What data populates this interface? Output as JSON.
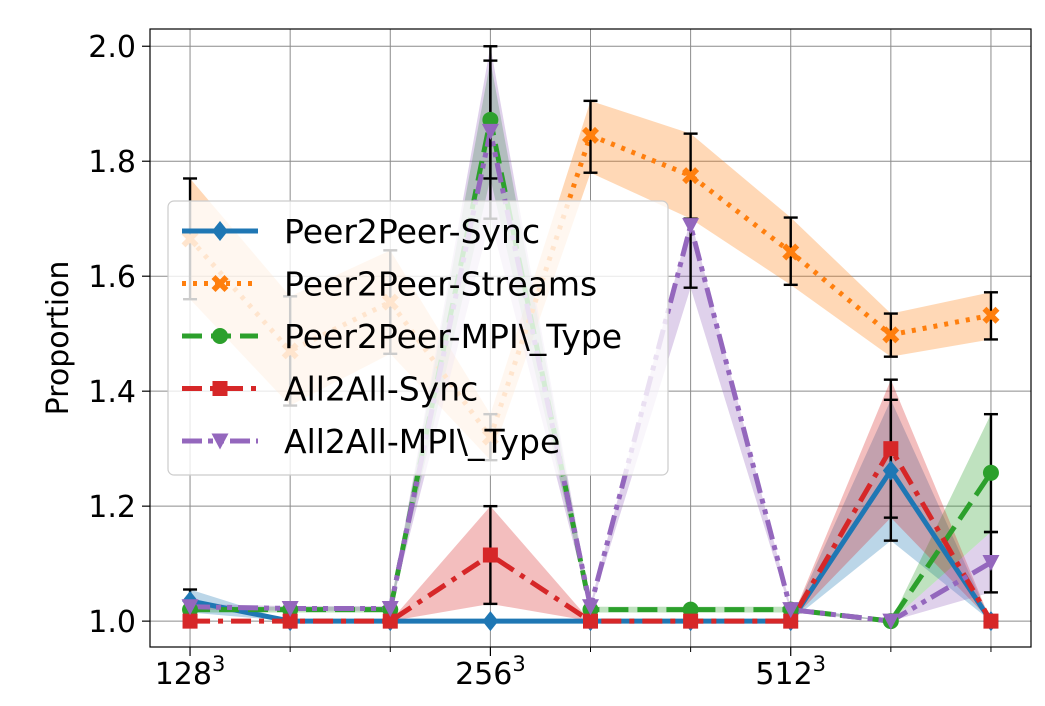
{
  "chart_data": {
    "type": "line",
    "ylabel": "Proportion",
    "xlabel": "",
    "ylim": [
      0.955,
      2.03
    ],
    "yticks": [
      1.0,
      1.2,
      1.4,
      1.6,
      1.8,
      2.0
    ],
    "ytick_labels": [
      "1.0",
      "1.2",
      "1.4",
      "1.6",
      "1.8",
      "2.0"
    ],
    "x": [
      0,
      1,
      2,
      3,
      4,
      5,
      6,
      7,
      8
    ],
    "xlim": [
      -0.4,
      8.4
    ],
    "xtick_positions": [
      0,
      3,
      6
    ],
    "xtick_labels": [
      {
        "base": "128",
        "exp": "3"
      },
      {
        "base": "256",
        "exp": "3"
      },
      {
        "base": "512",
        "exp": "3"
      }
    ],
    "minor_xticks": [
      1,
      2,
      4,
      5,
      7,
      8
    ],
    "grid": true,
    "legend_position": "upper-left",
    "series": [
      {
        "name": "Peer2Peer-Sync",
        "color": "#1f77b4",
        "linestyle": "solid",
        "marker": "diamond",
        "values": [
          1.035,
          1.0,
          1.0,
          1.0,
          1.0,
          1.0,
          1.0,
          1.262,
          1.0
        ],
        "lower": [
          1.015,
          1.0,
          1.0,
          1.0,
          1.0,
          1.0,
          1.0,
          1.14,
          1.0
        ],
        "upper": [
          1.055,
          1.0,
          1.0,
          1.0,
          1.0,
          1.0,
          1.0,
          1.385,
          1.0
        ]
      },
      {
        "name": "Peer2Peer-Streams",
        "color": "#ff7f0e",
        "linestyle": "dotted",
        "marker": "x",
        "values": [
          1.665,
          1.47,
          1.555,
          1.32,
          1.845,
          1.775,
          1.642,
          1.498,
          1.532
        ],
        "lower": [
          1.56,
          1.375,
          1.465,
          1.28,
          1.78,
          1.7,
          1.585,
          1.46,
          1.49
        ],
        "upper": [
          1.77,
          1.565,
          1.645,
          1.36,
          1.905,
          1.848,
          1.702,
          1.535,
          1.572
        ]
      },
      {
        "name": "Peer2Peer-MPI\\_Type",
        "color": "#2ca02c",
        "linestyle": "dashed",
        "marker": "circle",
        "values": [
          1.02,
          1.02,
          1.02,
          1.872,
          1.02,
          1.02,
          1.02,
          1.0,
          1.258
        ],
        "lower": [
          1.015,
          1.015,
          1.015,
          1.77,
          1.015,
          1.015,
          1.015,
          1.0,
          1.155
        ],
        "upper": [
          1.025,
          1.025,
          1.025,
          1.975,
          1.025,
          1.025,
          1.025,
          1.0,
          1.36
        ]
      },
      {
        "name": "All2All-Sync",
        "color": "#d62728",
        "linestyle": "dashdot",
        "marker": "square",
        "values": [
          1.0,
          1.0,
          1.0,
          1.115,
          1.0,
          1.0,
          1.0,
          1.3,
          1.0
        ],
        "lower": [
          1.0,
          1.0,
          1.0,
          1.03,
          1.0,
          1.0,
          1.0,
          1.18,
          1.0
        ],
        "upper": [
          1.0,
          1.0,
          1.0,
          1.2,
          1.0,
          1.0,
          1.0,
          1.42,
          1.0
        ]
      },
      {
        "name": "All2All-MPI\\_Type",
        "color": "#9467bd",
        "linestyle": "dashdotdot",
        "marker": "triangle-down",
        "values": [
          1.025,
          1.022,
          1.022,
          1.852,
          1.025,
          1.688,
          1.02,
          1.0,
          1.102
        ],
        "lower": [
          1.02,
          1.018,
          1.018,
          1.7,
          1.02,
          1.58,
          1.015,
          1.0,
          1.05
        ],
        "upper": [
          1.03,
          1.026,
          1.026,
          2.0,
          1.03,
          1.7,
          1.025,
          1.0,
          1.155
        ]
      }
    ]
  }
}
